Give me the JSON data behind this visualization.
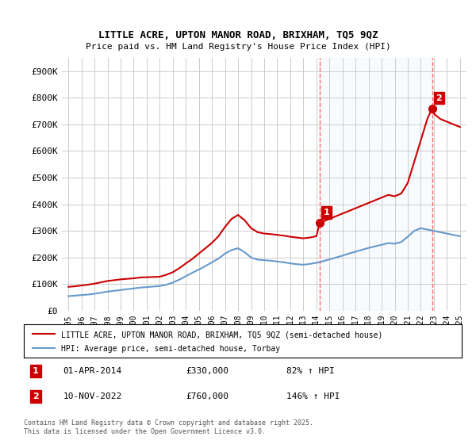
{
  "title": "LITTLE ACRE, UPTON MANOR ROAD, BRIXHAM, TQ5 9QZ",
  "subtitle": "Price paid vs. HM Land Registry's House Price Index (HPI)",
  "footer": "Contains HM Land Registry data © Crown copyright and database right 2025.\nThis data is licensed under the Open Government Licence v3.0.",
  "legend_line1": "LITTLE ACRE, UPTON MANOR ROAD, BRIXHAM, TQ5 9QZ (semi-detached house)",
  "legend_line2": "HPI: Average price, semi-detached house, Torbay",
  "sale1_label": "1",
  "sale1_date": "01-APR-2014",
  "sale1_price": "£330,000",
  "sale1_hpi": "82% ↑ HPI",
  "sale1_x": 2014.25,
  "sale1_y": 330000,
  "sale2_label": "2",
  "sale2_date": "10-NOV-2022",
  "sale2_price": "£760,000",
  "sale2_hpi": "146% ↑ HPI",
  "sale2_x": 2022.86,
  "sale2_y": 760000,
  "red_color": "#cc0000",
  "blue_color": "#6699cc",
  "background_color": "#ffffff",
  "grid_color": "#cccccc",
  "vline_color": "#ff6666",
  "ylim": [
    0,
    950000
  ],
  "xlim": [
    1994.5,
    2025.5
  ],
  "yticks": [
    0,
    100000,
    200000,
    300000,
    400000,
    500000,
    600000,
    700000,
    800000,
    900000
  ],
  "ytick_labels": [
    "£0",
    "£100K",
    "£200K",
    "£300K",
    "£400K",
    "£500K",
    "£600K",
    "£700K",
    "£800K",
    "£900K"
  ],
  "xticks": [
    1995,
    1996,
    1997,
    1998,
    1999,
    2000,
    2001,
    2002,
    2003,
    2004,
    2005,
    2006,
    2007,
    2008,
    2009,
    2010,
    2011,
    2012,
    2013,
    2014,
    2015,
    2016,
    2017,
    2018,
    2019,
    2020,
    2021,
    2022,
    2023,
    2024,
    2025
  ],
  "red_x": [
    1995.0,
    1995.5,
    1996.0,
    1996.5,
    1997.0,
    1997.5,
    1998.0,
    1998.5,
    1999.0,
    1999.5,
    2000.0,
    2000.5,
    2001.0,
    2001.5,
    2002.0,
    2002.5,
    2003.0,
    2003.5,
    2004.0,
    2004.5,
    2005.0,
    2005.5,
    2006.0,
    2006.5,
    2007.0,
    2007.5,
    2008.0,
    2008.5,
    2009.0,
    2009.5,
    2010.0,
    2010.5,
    2011.0,
    2011.5,
    2012.0,
    2012.5,
    2013.0,
    2013.5,
    2014.0,
    2014.25,
    2014.5,
    2015.0,
    2015.5,
    2016.0,
    2016.5,
    2017.0,
    2017.5,
    2018.0,
    2018.5,
    2019.0,
    2019.5,
    2020.0,
    2020.5,
    2021.0,
    2021.5,
    2022.0,
    2022.5,
    2022.86,
    2023.0,
    2023.5,
    2024.0,
    2024.5,
    2025.0
  ],
  "red_y": [
    90000,
    92000,
    95000,
    98000,
    102000,
    107000,
    112000,
    115000,
    118000,
    120000,
    122000,
    125000,
    126000,
    127000,
    128000,
    135000,
    145000,
    160000,
    178000,
    195000,
    215000,
    235000,
    255000,
    280000,
    315000,
    345000,
    360000,
    340000,
    310000,
    295000,
    290000,
    288000,
    285000,
    282000,
    278000,
    275000,
    272000,
    275000,
    280000,
    330000,
    335000,
    345000,
    355000,
    365000,
    375000,
    385000,
    395000,
    405000,
    415000,
    425000,
    435000,
    430000,
    440000,
    480000,
    560000,
    640000,
    720000,
    760000,
    740000,
    720000,
    710000,
    700000,
    690000
  ],
  "blue_x": [
    1995.0,
    1995.5,
    1996.0,
    1996.5,
    1997.0,
    1997.5,
    1998.0,
    1998.5,
    1999.0,
    1999.5,
    2000.0,
    2000.5,
    2001.0,
    2001.5,
    2002.0,
    2002.5,
    2003.0,
    2003.5,
    2004.0,
    2004.5,
    2005.0,
    2005.5,
    2006.0,
    2006.5,
    2007.0,
    2007.5,
    2008.0,
    2008.5,
    2009.0,
    2009.5,
    2010.0,
    2010.5,
    2011.0,
    2011.5,
    2012.0,
    2012.5,
    2013.0,
    2013.5,
    2014.0,
    2014.5,
    2015.0,
    2015.5,
    2016.0,
    2016.5,
    2017.0,
    2017.5,
    2018.0,
    2018.5,
    2019.0,
    2019.5,
    2020.0,
    2020.5,
    2021.0,
    2021.5,
    2022.0,
    2022.5,
    2023.0,
    2023.5,
    2024.0,
    2024.5,
    2025.0
  ],
  "blue_y": [
    55000,
    57000,
    59000,
    61000,
    64000,
    68000,
    72000,
    75000,
    78000,
    81000,
    84000,
    87000,
    89000,
    91000,
    93000,
    98000,
    106000,
    117000,
    130000,
    143000,
    155000,
    168000,
    182000,
    196000,
    215000,
    228000,
    235000,
    220000,
    200000,
    192000,
    190000,
    188000,
    185000,
    182000,
    178000,
    175000,
    173000,
    176000,
    180000,
    186000,
    193000,
    200000,
    207000,
    215000,
    222000,
    229000,
    236000,
    242000,
    248000,
    254000,
    252000,
    258000,
    278000,
    300000,
    310000,
    305000,
    300000,
    295000,
    290000,
    285000,
    280000
  ]
}
